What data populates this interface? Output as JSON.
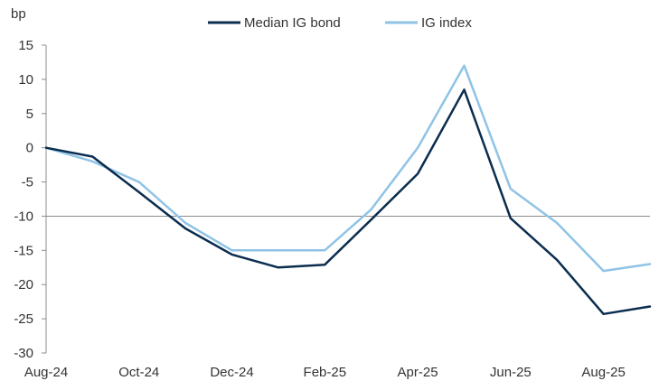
{
  "chart_data": {
    "type": "line",
    "ylabel": "bp",
    "ylim": [
      -30,
      15
    ],
    "yticks": [
      15,
      10,
      5,
      0,
      -5,
      -10,
      -15,
      -20,
      -25,
      -30
    ],
    "x_tick_labels": [
      "Aug-24",
      "Oct-24",
      "Dec-24",
      "Feb-25",
      "Apr-25",
      "Jun-25",
      "Aug-25"
    ],
    "x_tick_positions": [
      0,
      2,
      4,
      6,
      8,
      10,
      12
    ],
    "reference_line": -10,
    "legend_position": "top-center",
    "series": [
      {
        "name": "Median IG bond",
        "color": "#0b2d4f",
        "x": [
          0,
          1,
          2,
          3,
          4,
          5,
          6,
          7,
          8,
          9,
          10,
          11,
          12,
          13
        ],
        "values": [
          0,
          -1.3,
          -6.5,
          -11.8,
          -15.6,
          -17.5,
          -17.1,
          -10.5,
          -3.8,
          8.5,
          -10.3,
          -16.4,
          -24.3,
          -23.2
        ]
      },
      {
        "name": "IG index",
        "color": "#8fc3e6",
        "x": [
          0,
          1,
          2,
          3,
          4,
          5,
          6,
          7,
          8,
          9,
          10,
          11,
          12,
          13
        ],
        "values": [
          0,
          -2,
          -5,
          -11,
          -15,
          -15,
          -15,
          -9,
          0,
          12,
          -6,
          -11,
          -18,
          -17
        ]
      }
    ]
  }
}
